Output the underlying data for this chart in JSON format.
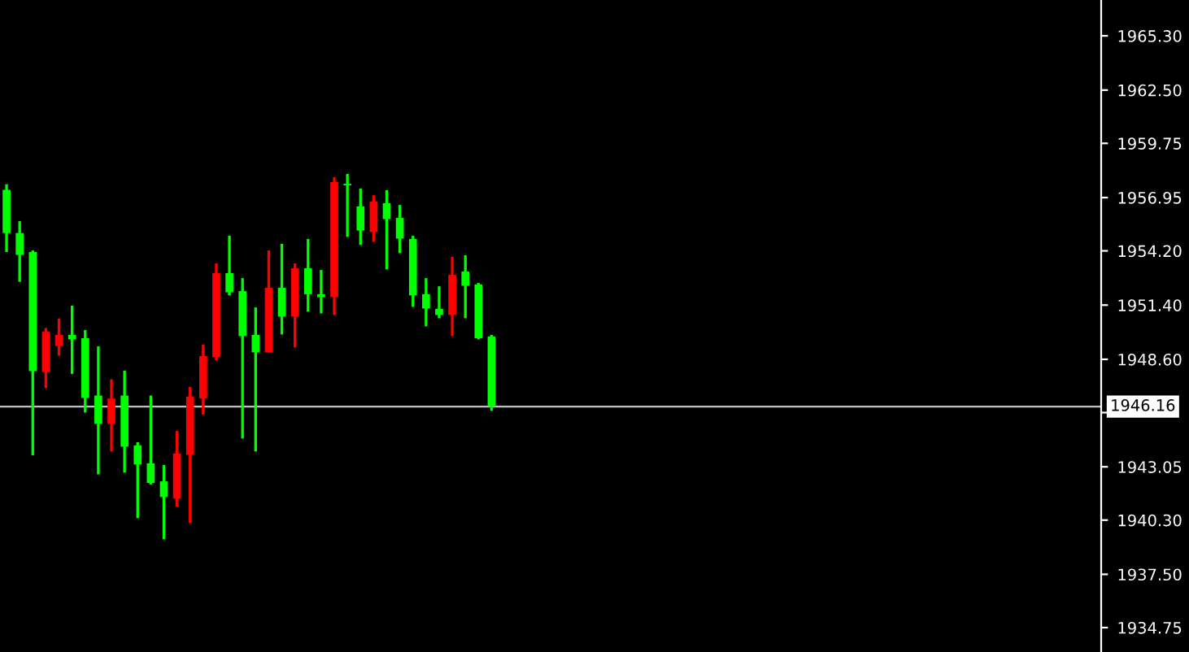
{
  "chart_data": {
    "type": "candlestick",
    "categories": [
      null,
      null,
      null,
      null,
      null,
      null,
      null,
      null,
      null,
      null,
      null,
      null,
      null,
      null,
      null,
      null,
      null,
      null,
      null,
      null,
      null,
      null,
      null,
      null,
      null,
      null,
      null,
      null,
      null,
      null,
      null,
      null,
      null,
      null,
      null,
      null,
      null,
      null,
      null,
      null,
      null,
      null,
      null,
      null,
      null,
      null,
      null,
      null,
      null,
      null,
      null,
      null,
      null,
      null,
      null,
      null,
      null,
      null,
      null,
      null,
      null,
      null,
      null,
      null,
      null,
      null,
      null,
      null,
      null,
      null,
      null,
      null,
      null,
      null,
      null,
      null,
      null,
      null,
      null,
      null,
      null,
      null,
      null,
      null
    ],
    "ohlc": [
      [
        1957.35,
        1957.64,
        1954.14,
        1955.12
      ],
      [
        1955.12,
        1955.73,
        1952.6,
        1953.99
      ],
      [
        1954.14,
        1954.22,
        1943.65,
        1947.99
      ],
      [
        1947.95,
        1950.22,
        1947.11,
        1950.02
      ],
      [
        1949.29,
        1950.7,
        1948.79,
        1949.86
      ],
      [
        1949.86,
        1951.37,
        1947.84,
        1949.63
      ],
      [
        1949.69,
        1950.11,
        1945.85,
        1946.61
      ],
      [
        1946.73,
        1949.27,
        1942.66,
        1945.27
      ],
      [
        1945.27,
        1947.57,
        1943.84,
        1946.58
      ],
      [
        1946.73,
        1948.01,
        1942.75,
        1944.09
      ],
      [
        1944.15,
        1944.32,
        1940.4,
        1943.17
      ],
      [
        1943.23,
        1946.73,
        1942.14,
        1942.22
      ],
      [
        1942.3,
        1943.14,
        1939.31,
        1941.49
      ],
      [
        1941.41,
        1944.91,
        1940.99,
        1943.73
      ],
      [
        1943.67,
        1947.17,
        1940.15,
        1946.67
      ],
      [
        1946.58,
        1949.35,
        1945.74,
        1948.77
      ],
      [
        1948.71,
        1953.55,
        1948.54,
        1953.05
      ],
      [
        1953.05,
        1954.98,
        1951.9,
        1952.06
      ],
      [
        1952.12,
        1952.79,
        1944.51,
        1949.8
      ],
      [
        1949.86,
        1951.28,
        1943.84,
        1948.96
      ],
      [
        1948.96,
        1954.22,
        1948.96,
        1952.29
      ],
      [
        1952.29,
        1954.56,
        1949.88,
        1950.81
      ],
      [
        1950.81,
        1953.55,
        1949.21,
        1953.3
      ],
      [
        1953.3,
        1954.81,
        1951.06,
        1951.96
      ],
      [
        1951.96,
        1953.21,
        1950.97,
        1951.81
      ],
      [
        1951.81,
        1958.0,
        1950.89,
        1957.75
      ],
      [
        1957.66,
        1958.17,
        1954.92,
        1957.58
      ],
      [
        1956.49,
        1957.41,
        1954.5,
        1955.25
      ],
      [
        1955.17,
        1957.07,
        1954.67,
        1956.74
      ],
      [
        1956.66,
        1957.33,
        1953.24,
        1955.84
      ],
      [
        1955.9,
        1956.57,
        1954.08,
        1954.83
      ],
      [
        1954.81,
        1954.98,
        1951.31,
        1951.9
      ],
      [
        1951.96,
        1952.79,
        1950.3,
        1951.22
      ],
      [
        1951.2,
        1952.37,
        1950.72,
        1950.89
      ],
      [
        1950.89,
        1953.89,
        1949.8,
        1952.96
      ],
      [
        1953.13,
        1953.97,
        1950.72,
        1952.4
      ],
      [
        1952.46,
        1952.54,
        1949.63,
        1949.69
      ],
      [
        1949.77,
        1949.86,
        1945.94,
        1946.16
      ],
      null,
      null,
      null,
      null,
      null,
      null,
      null,
      null,
      null,
      null,
      null,
      null,
      null,
      null,
      null,
      null,
      null,
      null,
      null,
      null,
      null,
      null,
      null,
      null,
      null,
      null,
      null,
      null,
      null,
      null,
      null,
      null,
      null,
      null,
      null,
      null,
      null,
      null,
      null,
      null,
      null,
      null,
      null,
      null,
      null,
      null
    ],
    "colors": [
      "#00ff00",
      "#00ff00",
      "#00ff00",
      "#ff0000",
      "#ff0000",
      "#00ff00",
      "#00ff00",
      "#00ff00",
      "#ff0000",
      "#00ff00",
      "#00ff00",
      "#00ff00",
      "#00ff00",
      "#ff0000",
      "#ff0000",
      "#ff0000",
      "#ff0000",
      "#00ff00",
      "#00ff00",
      "#00ff00",
      "#ff0000",
      "#00ff00",
      "#ff0000",
      "#00ff00",
      "#00ff00",
      "#ff0000",
      "#00ff00",
      "#00ff00",
      "#ff0000",
      "#00ff00",
      "#00ff00",
      "#00ff00",
      "#00ff00",
      "#00ff00",
      "#ff0000",
      "#00ff00",
      "#00ff00",
      "#00ff00",
      null,
      null,
      null,
      null,
      null,
      null,
      null,
      null,
      null,
      null,
      null,
      null,
      null,
      null,
      null,
      null,
      null,
      null,
      null,
      null,
      null,
      null,
      null,
      null,
      null,
      null,
      null,
      null,
      null,
      null,
      null,
      null,
      null,
      null,
      null,
      null,
      null,
      null,
      null,
      null,
      null,
      null,
      null,
      null,
      null,
      null
    ],
    "ylim": [
      1933.49,
      1967.15
    ],
    "yticks": [
      1934.75,
      {
        "value": 1937.5,
        "label": "1937.50"
      },
      {
        "value": 1940.3,
        "label": "1940.30"
      },
      1943.05,
      {
        "value": 1945.85,
        "label": null
      },
      {
        "value": 1948.6,
        "label": "1948.60"
      },
      {
        "value": 1951.4,
        "label": "1951.40"
      },
      {
        "value": 1954.2,
        "label": "1954.20"
      },
      1956.95,
      1959.75,
      {
        "value": 1962.5,
        "label": "1962.50"
      },
      {
        "value": 1965.3,
        "label": "1965.30"
      }
    ],
    "ref_lines": [
      {
        "axis": "y",
        "value": 1946.16,
        "label": "1946.16",
        "color": "#c0c0c0"
      }
    ],
    "grid": false,
    "tick_labels": "y"
  }
}
